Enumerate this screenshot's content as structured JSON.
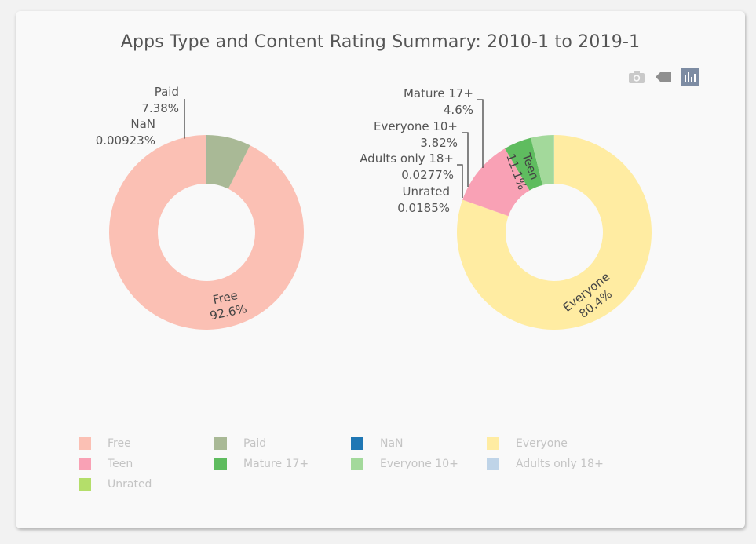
{
  "title": "Apps Type and Content Rating Summary: 2010-1 to 2019-1",
  "modebar": {
    "icons": [
      "camera-icon",
      "tag-icon",
      "bar-chart-icon"
    ]
  },
  "chart_data": [
    {
      "type": "pie",
      "hole": true,
      "slices": [
        {
          "label": "Free",
          "percent": 92.6,
          "percent_text": "92.6%",
          "color": "#fbc0b4",
          "text_inside": true
        },
        {
          "label": "Paid",
          "percent": 7.38,
          "percent_text": "7.38%",
          "color": "#a9b996",
          "text_inside": false
        },
        {
          "label": "NaN",
          "percent": 0.00923,
          "percent_text": "0.00923%",
          "color": "#1f77b4",
          "text_inside": false
        }
      ]
    },
    {
      "type": "pie",
      "hole": true,
      "slices": [
        {
          "label": "Everyone",
          "percent": 80.4,
          "percent_text": "80.4%",
          "color": "#ffeca2",
          "text_inside": true
        },
        {
          "label": "Teen",
          "percent": 11.1,
          "percent_text": "11.1%",
          "color": "#f9a1b5",
          "text_inside": true
        },
        {
          "label": "Mature 17+",
          "percent": 4.6,
          "percent_text": "4.6%",
          "color": "#5fbc5f",
          "text_inside": false
        },
        {
          "label": "Everyone 10+",
          "percent": 3.82,
          "percent_text": "3.82%",
          "color": "#a3d99b",
          "text_inside": false
        },
        {
          "label": "Adults only 18+",
          "percent": 0.0277,
          "percent_text": "0.0277%",
          "color": "#bfd4e8",
          "text_inside": false
        },
        {
          "label": "Unrated",
          "percent": 0.0185,
          "percent_text": "0.0185%",
          "color": "#b4de6a",
          "text_inside": false
        }
      ]
    }
  ],
  "legend": {
    "placement": "bottom",
    "items": [
      {
        "label": "Free",
        "color": "#fbc0b4"
      },
      {
        "label": "Paid",
        "color": "#a9b996"
      },
      {
        "label": "NaN",
        "color": "#1f77b4"
      },
      {
        "label": "Everyone",
        "color": "#ffeca2"
      },
      {
        "label": "Teen",
        "color": "#f9a1b5"
      },
      {
        "label": "Mature 17+",
        "color": "#5fbc5f"
      },
      {
        "label": "Everyone 10+",
        "color": "#a3d99b"
      },
      {
        "label": "Adults only 18+",
        "color": "#bfd4e8"
      },
      {
        "label": "Unrated",
        "color": "#b4de6a"
      }
    ]
  }
}
